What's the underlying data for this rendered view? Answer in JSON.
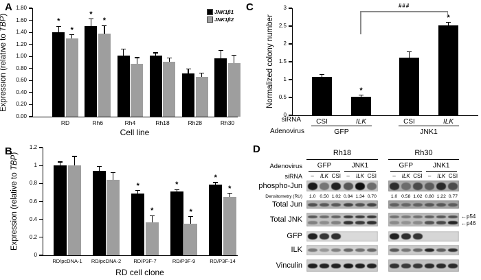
{
  "figure": {
    "background": "#ffffff",
    "panels": {
      "A": {
        "letter": "A"
      },
      "B": {
        "letter": "B"
      },
      "C": {
        "letter": "C"
      },
      "D": {
        "letter": "D"
      }
    }
  },
  "chart_data": [
    {
      "panel": "A",
      "type": "bar",
      "title": "",
      "xlabel": "Cell line",
      "ylabel": "Expression (relative to TBP)",
      "ylabel_italic": "TBP",
      "ylim": [
        0,
        1.8
      ],
      "ytick_step": 0.2,
      "ytick_labels": [
        "0.00",
        "0.20",
        "0.40",
        "0.60",
        "0.80",
        "1.00",
        "1.20",
        "1.40",
        "1.60",
        "1.80"
      ],
      "grid": false,
      "legend_position": "top-right",
      "categories": [
        "RD",
        "Rh6",
        "Rh4",
        "Rh18",
        "Rh28",
        "Rh30"
      ],
      "series": [
        {
          "name": "JNK1β1",
          "color": "#000000",
          "values": [
            1.4,
            1.5,
            1.01,
            1.01,
            0.72,
            0.97
          ],
          "errors": [
            0.1,
            0.12,
            0.11,
            0.05,
            0.07,
            0.13
          ],
          "sig": [
            "*",
            "*",
            "",
            "",
            "",
            ""
          ]
        },
        {
          "name": "JNK1β2",
          "color": "#9e9e9e",
          "values": [
            1.3,
            1.38,
            0.88,
            0.91,
            0.66,
            0.89
          ],
          "errors": [
            0.06,
            0.13,
            0.1,
            0.06,
            0.06,
            0.13
          ],
          "sig": [
            "*",
            "*",
            "",
            "",
            "",
            ""
          ]
        }
      ]
    },
    {
      "panel": "B",
      "type": "bar",
      "title": "",
      "xlabel": "RD cell clone",
      "ylabel": "Expression (relative to TBP)",
      "ylabel_italic": "TBP",
      "ylim": [
        0,
        1.2
      ],
      "ytick_step": 0.2,
      "ytick_labels": [
        "0",
        "0.2",
        "0.4",
        "0.6",
        "0.8",
        "1",
        "1.2"
      ],
      "grid": false,
      "categories": [
        "RD/pcDNA-1",
        "RD/pcDNA-2",
        "RD/P3F-7",
        "RD/P3F-9",
        "RD/P3F-14"
      ],
      "series": [
        {
          "name": "JNK1β1",
          "color": "#000000",
          "values": [
            1.0,
            0.94,
            0.69,
            0.71,
            0.79
          ],
          "errors": [
            0.04,
            0.05,
            0.03,
            0.02,
            0.02
          ],
          "sig": [
            "",
            "",
            "*",
            "*",
            "*"
          ]
        },
        {
          "name": "JNK1β2",
          "color": "#9e9e9e",
          "values": [
            1.0,
            0.84,
            0.37,
            0.35,
            0.65
          ],
          "errors": [
            0.1,
            0.08,
            0.07,
            0.08,
            0.04
          ],
          "sig": [
            "",
            "",
            "*",
            "*",
            "*"
          ]
        }
      ]
    },
    {
      "panel": "C",
      "type": "bar",
      "title": "",
      "ylabel": "Normalized colony number",
      "ylim": [
        0,
        3
      ],
      "ytick_step": 0.5,
      "ytick_labels": [
        "0",
        "0.5",
        "1",
        "1.5",
        "2",
        "2.5",
        "3"
      ],
      "grid": false,
      "bar_color": "#000000",
      "group_axis": {
        "row1_label": "siRNA",
        "row2_label": "Adenovirus"
      },
      "groups": [
        {
          "label": "GFP",
          "bars": [
            {
              "cat": "CSI",
              "italic": false,
              "value": 1.08,
              "error": 0.07,
              "sig": ""
            },
            {
              "cat": "ILK",
              "italic": true,
              "value": 0.51,
              "error": 0.05,
              "sig": "*"
            }
          ]
        },
        {
          "label": "JNK1",
          "bars": [
            {
              "cat": "CSI",
              "italic": false,
              "value": 1.62,
              "error": 0.16,
              "sig": ""
            },
            {
              "cat": "ILK",
              "italic": true,
              "value": 2.52,
              "error": 0.08,
              "sig": "*"
            }
          ]
        }
      ],
      "bracket": {
        "label": "###",
        "from": "GFP/ILK",
        "to": "JNK1/ILK",
        "color": "#8a8a8a"
      }
    }
  ],
  "blot_data": {
    "panel": "D",
    "cell_lines": [
      "Rh18",
      "Rh30"
    ],
    "adenovirus_label": "Adenovirus",
    "adenovirus_groups": [
      "GFP",
      "JNK1"
    ],
    "sirna_label": "siRNA",
    "lane_labels": [
      "–",
      "ILK",
      "CSI",
      "–",
      "ILK",
      "CSI"
    ],
    "lane_italic": [
      false,
      true,
      false,
      false,
      true,
      false
    ],
    "rows": [
      {
        "label": "phospho-Jun",
        "kind": "blot",
        "h": 16,
        "bandH": 11,
        "bg": [
          "#c9c9c9",
          "#ababab"
        ],
        "bands": [
          [
            0.95,
            0.45,
            0.9,
            0.62,
            1.0,
            0.5
          ],
          [
            0.8,
            0.4,
            0.62,
            0.5,
            0.82,
            0.6
          ]
        ]
      },
      {
        "label": "Densitometry (RU)",
        "kind": "values",
        "values": [
          [
            "1.0",
            "0.50",
            "1.02",
            "0.84",
            "1.34",
            "0.70"
          ],
          [
            "1.0",
            "0.58",
            "1.02",
            "0.80",
            "1.22",
            "0.77"
          ]
        ]
      },
      {
        "label": "Total Jun",
        "kind": "blot",
        "h": 12,
        "bandH": 5,
        "bg": [
          "#b5b5b5",
          "#a5a5a5"
        ],
        "bands": [
          [
            0.6,
            0.55,
            0.55,
            0.68,
            0.6,
            0.68
          ],
          [
            0.45,
            0.42,
            0.45,
            0.52,
            0.52,
            0.48
          ]
        ]
      },
      {
        "label": "Total JNK",
        "kind": "blot-double",
        "h": 20,
        "bandH": 4.5,
        "bg": [
          "#c2c2c2",
          "#bdbdbd"
        ],
        "bands_top": [
          [
            0.62,
            0.5,
            0.55,
            0.78,
            0.78,
            0.82
          ],
          [
            0.45,
            0.4,
            0.45,
            0.55,
            0.6,
            0.65
          ]
        ],
        "bands_bottom": [
          [
            0.38,
            0.3,
            0.38,
            0.82,
            0.78,
            0.85
          ],
          [
            0.3,
            0.25,
            0.3,
            0.62,
            0.68,
            0.9
          ]
        ],
        "arrows": [
          "p54",
          "p46"
        ]
      },
      {
        "label": "GFP",
        "kind": "blot",
        "h": 15,
        "bandH": 9,
        "bg": [
          "#dadada",
          "#d6d6d6"
        ],
        "bands": [
          [
            0.92,
            0.82,
            0.85,
            0,
            0,
            0
          ],
          [
            0.92,
            0.85,
            0.82,
            0,
            0,
            0
          ]
        ]
      },
      {
        "label": "ILK",
        "kind": "blot",
        "h": 15,
        "bandH": 5,
        "bg": [
          "#d2d2d2",
          "#cbcbcb"
        ],
        "bands": [
          [
            0.45,
            0.3,
            0.42,
            0.55,
            0.5,
            0.55
          ],
          [
            0.62,
            0.45,
            0.52,
            0.88,
            0.58,
            0.82
          ]
        ]
      },
      {
        "label": "Vinculin",
        "kind": "blot",
        "h": 18,
        "bandH": 7,
        "bg": [
          "#cccccc",
          "#c2c2c2"
        ],
        "bands": [
          [
            0.92,
            0.9,
            0.9,
            0.95,
            0.92,
            0.9
          ],
          [
            0.8,
            0.76,
            0.78,
            0.85,
            0.85,
            0.85
          ]
        ]
      }
    ]
  }
}
